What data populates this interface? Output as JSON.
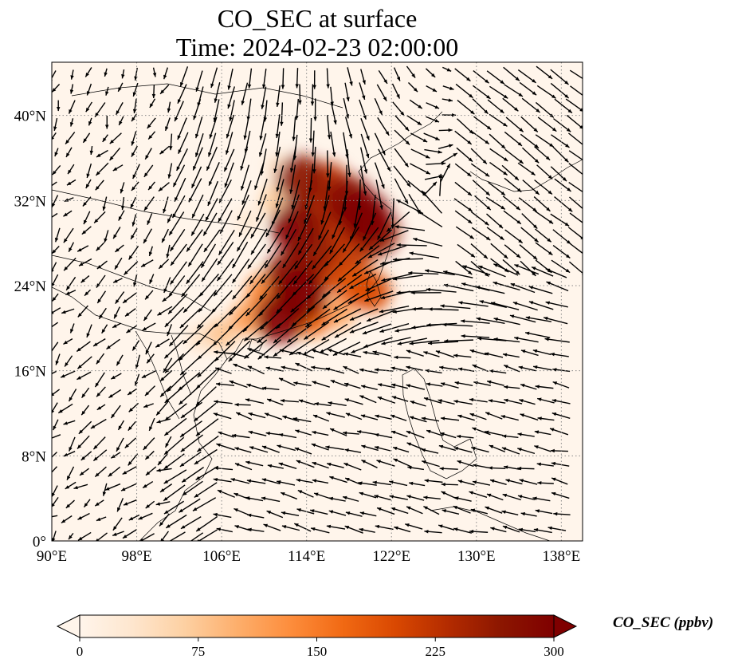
{
  "figure": {
    "title_line1": "CO_SEC at surface",
    "title_line2": "Time: 2024-02-23 02:00:00"
  },
  "map": {
    "projection": "PlateCarree",
    "extent": {
      "lon_min": 90,
      "lon_max": 140,
      "lat_min": 0,
      "lat_max": 45
    },
    "gridlines": {
      "style": "dotted",
      "color": "#888888"
    },
    "lon_ticks": [
      {
        "value": 90,
        "label": "90°E"
      },
      {
        "value": 98,
        "label": "98°E"
      },
      {
        "value": 106,
        "label": "106°E"
      },
      {
        "value": 114,
        "label": "114°E"
      },
      {
        "value": 122,
        "label": "122°E"
      },
      {
        "value": 130,
        "label": "130°E"
      },
      {
        "value": 138,
        "label": "138°E"
      }
    ],
    "lat_ticks": [
      {
        "value": 0,
        "label": "0°"
      },
      {
        "value": 8,
        "label": "8°N"
      },
      {
        "value": 16,
        "label": "16°N"
      },
      {
        "value": 24,
        "label": "24°N"
      },
      {
        "value": 32,
        "label": "32°N"
      },
      {
        "value": 40,
        "label": "40°N"
      }
    ],
    "background_color": "#fff5eb",
    "wind_vectors": "quiver field, surface wind (northeasterly outflow over eastern China and South China Sea)"
  },
  "chart_data": {
    "type": "heatmap",
    "variable": "CO_SEC",
    "units": "ppbv",
    "colormap": "Oranges/OrRd",
    "color_range": [
      0,
      300
    ],
    "plume_cells": [
      {
        "lon": 113.5,
        "lat": 34.0,
        "value": 270
      },
      {
        "lon": 116.0,
        "lat": 33.5,
        "value": 230
      },
      {
        "lon": 118.0,
        "lat": 32.0,
        "value": 280
      },
      {
        "lon": 119.5,
        "lat": 30.5,
        "value": 300
      },
      {
        "lon": 120.5,
        "lat": 29.0,
        "value": 260
      },
      {
        "lon": 115.0,
        "lat": 31.0,
        "value": 240
      },
      {
        "lon": 113.0,
        "lat": 29.5,
        "value": 290
      },
      {
        "lon": 117.0,
        "lat": 29.5,
        "value": 230
      },
      {
        "lon": 114.5,
        "lat": 27.0,
        "value": 260
      },
      {
        "lon": 118.5,
        "lat": 27.5,
        "value": 220
      },
      {
        "lon": 112.5,
        "lat": 25.0,
        "value": 280
      },
      {
        "lon": 116.0,
        "lat": 25.5,
        "value": 210
      },
      {
        "lon": 113.5,
        "lat": 23.0,
        "value": 300
      },
      {
        "lon": 111.5,
        "lat": 21.0,
        "value": 290
      },
      {
        "lon": 118.5,
        "lat": 24.0,
        "value": 180
      },
      {
        "lon": 120.0,
        "lat": 23.5,
        "value": 200
      },
      {
        "lon": 110.0,
        "lat": 23.5,
        "value": 140
      },
      {
        "lon": 108.5,
        "lat": 21.0,
        "value": 120
      },
      {
        "lon": 106.0,
        "lat": 19.5,
        "value": 80
      },
      {
        "lon": 104.0,
        "lat": 19.0,
        "value": 40
      },
      {
        "lon": 111.0,
        "lat": 32.0,
        "value": 70
      },
      {
        "lon": 108.5,
        "lat": 30.0,
        "value": 30
      },
      {
        "lon": 111.5,
        "lat": 35.0,
        "value": 45
      },
      {
        "lon": 114.5,
        "lat": 21.0,
        "value": 170
      },
      {
        "lon": 117.0,
        "lat": 21.5,
        "value": 110
      }
    ]
  },
  "colorbar": {
    "label": "CO_SEC (ppbv)",
    "min": 0,
    "max": 300,
    "extend": "both",
    "stops": [
      "#fff5eb",
      "#fee6ce",
      "#fdd0a2",
      "#fdae6b",
      "#fd8d3c",
      "#f16913",
      "#d94801",
      "#b32b00",
      "#8c1600",
      "#7f0000"
    ],
    "ticks": [
      {
        "value": 0,
        "label": "0"
      },
      {
        "value": 75,
        "label": "75"
      },
      {
        "value": 150,
        "label": "150"
      },
      {
        "value": 225,
        "label": "225"
      },
      {
        "value": 300,
        "label": "300"
      }
    ]
  }
}
